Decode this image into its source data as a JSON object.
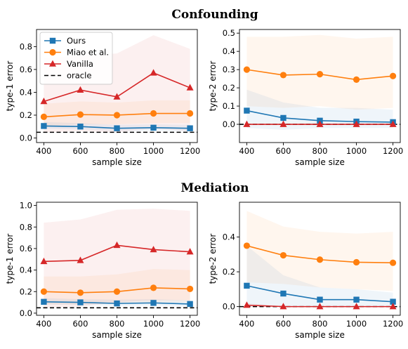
{
  "figure": {
    "section_titles": [
      "Confounding",
      "Mediation"
    ]
  },
  "legend": {
    "entries": [
      {
        "label": "Ours",
        "color": "#1f77b4",
        "marker": "square",
        "dash": false
      },
      {
        "label": "Miao et al.",
        "color": "#ff7f0e",
        "marker": "circle",
        "dash": false
      },
      {
        "label": "Vanilla",
        "color": "#d62728",
        "marker": "triangle",
        "dash": false
      },
      {
        "label": "oracle",
        "color": "#000000",
        "marker": "none",
        "dash": true
      }
    ]
  },
  "chart_data": [
    {
      "type": "line",
      "section": "Confounding",
      "xlabel": "sample size",
      "ylabel": "type-1 error",
      "x": [
        400,
        600,
        800,
        1000,
        1200
      ],
      "xlim": [
        360,
        1240
      ],
      "ylim": [
        -0.04,
        0.95
      ],
      "yticks": [
        0.0,
        0.2,
        0.4,
        0.6,
        0.8
      ],
      "ytick_labels": [
        "0.0",
        "0.2",
        "0.4",
        "0.6",
        "0.8"
      ],
      "oracle": 0.05,
      "legend": true,
      "series": [
        {
          "name": "Ours",
          "values": [
            0.105,
            0.1,
            0.085,
            0.09,
            0.085
          ],
          "band_low": [
            0.08,
            0.075,
            0.06,
            0.065,
            0.06
          ],
          "band_high": [
            0.14,
            0.13,
            0.115,
            0.12,
            0.115
          ]
        },
        {
          "name": "Miao et al.",
          "values": [
            0.185,
            0.205,
            0.2,
            0.215,
            0.215
          ],
          "band_low": [
            0.1,
            0.12,
            0.12,
            0.13,
            0.13
          ],
          "band_high": [
            0.3,
            0.32,
            0.31,
            0.33,
            0.33
          ]
        },
        {
          "name": "Vanilla",
          "values": [
            0.32,
            0.42,
            0.36,
            0.57,
            0.44
          ],
          "band_low": [
            0.05,
            0.06,
            0.05,
            0.08,
            0.06
          ],
          "band_high": [
            0.7,
            0.72,
            0.74,
            0.9,
            0.78
          ]
        }
      ]
    },
    {
      "type": "line",
      "section": "Confounding",
      "xlabel": "sample size",
      "ylabel": "type-2 error",
      "x": [
        400,
        600,
        800,
        1000,
        1200
      ],
      "xlim": [
        360,
        1240
      ],
      "ylim": [
        -0.1,
        0.52
      ],
      "yticks": [
        0.0,
        0.1,
        0.2,
        0.3,
        0.4,
        0.5
      ],
      "ytick_labels": [
        "0.0",
        "0.1",
        "0.2",
        "0.3",
        "0.4",
        "0.5"
      ],
      "oracle": 0.0,
      "legend": false,
      "series": [
        {
          "name": "Ours",
          "values": [
            0.075,
            0.035,
            0.02,
            0.015,
            0.012
          ],
          "band_low": [
            -0.02,
            -0.03,
            -0.02,
            -0.02,
            -0.02
          ],
          "band_high": [
            0.19,
            0.12,
            0.09,
            0.09,
            0.08
          ]
        },
        {
          "name": "Miao et al.",
          "values": [
            0.3,
            0.27,
            0.275,
            0.245,
            0.265
          ],
          "band_low": [
            0.1,
            0.09,
            0.1,
            0.08,
            0.09
          ],
          "band_high": [
            0.48,
            0.48,
            0.49,
            0.47,
            0.48
          ]
        },
        {
          "name": "Vanilla",
          "values": [
            0.0,
            0.0,
            0.0,
            0.0,
            0.0
          ],
          "band_low": [
            0.0,
            0.0,
            0.0,
            0.0,
            0.0
          ],
          "band_high": [
            0.003,
            0.003,
            0.003,
            0.003,
            0.003
          ]
        }
      ]
    },
    {
      "type": "line",
      "section": "Mediation",
      "xlabel": "sample size",
      "ylabel": "type-1 error",
      "x": [
        400,
        600,
        800,
        1000,
        1200
      ],
      "xlim": [
        360,
        1240
      ],
      "ylim": [
        -0.02,
        1.03
      ],
      "yticks": [
        0.0,
        0.2,
        0.4,
        0.6,
        0.8,
        1.0
      ],
      "ytick_labels": [
        "0.0",
        "0.2",
        "0.4",
        "0.6",
        "0.8",
        "1.0"
      ],
      "oracle": 0.05,
      "legend": false,
      "series": [
        {
          "name": "Ours",
          "values": [
            0.105,
            0.1,
            0.09,
            0.095,
            0.085
          ],
          "band_low": [
            0.08,
            0.075,
            0.065,
            0.07,
            0.06
          ],
          "band_high": [
            0.14,
            0.13,
            0.125,
            0.13,
            0.12
          ]
        },
        {
          "name": "Miao et al.",
          "values": [
            0.2,
            0.19,
            0.2,
            0.235,
            0.225
          ],
          "band_low": [
            0.08,
            0.08,
            0.09,
            0.1,
            0.1
          ],
          "band_high": [
            0.34,
            0.34,
            0.36,
            0.41,
            0.4
          ]
        },
        {
          "name": "Vanilla",
          "values": [
            0.48,
            0.49,
            0.63,
            0.59,
            0.57
          ],
          "band_low": [
            0.05,
            0.06,
            0.1,
            0.12,
            0.12
          ],
          "band_high": [
            0.84,
            0.87,
            0.96,
            0.97,
            0.95
          ]
        }
      ]
    },
    {
      "type": "line",
      "section": "Mediation",
      "xlabel": "sample size",
      "ylabel": "type-2 error",
      "x": [
        400,
        600,
        800,
        1000,
        1200
      ],
      "xlim": [
        360,
        1240
      ],
      "ylim": [
        -0.05,
        0.6
      ],
      "yticks": [
        0.0,
        0.2,
        0.4
      ],
      "ytick_labels": [
        "0.0",
        "0.2",
        "0.4"
      ],
      "oracle": 0.0,
      "legend": false,
      "series": [
        {
          "name": "Ours",
          "values": [
            0.12,
            0.075,
            0.04,
            0.04,
            0.028
          ],
          "band_low": [
            0.0,
            0.0,
            0.0,
            0.0,
            0.0
          ],
          "band_high": [
            0.35,
            0.18,
            0.11,
            0.1,
            0.08
          ]
        },
        {
          "name": "Miao et al.",
          "values": [
            0.35,
            0.295,
            0.27,
            0.255,
            0.252
          ],
          "band_low": [
            0.14,
            0.13,
            0.11,
            0.1,
            0.09
          ],
          "band_high": [
            0.55,
            0.46,
            0.43,
            0.42,
            0.43
          ]
        },
        {
          "name": "Vanilla",
          "values": [
            0.008,
            0.0,
            0.0,
            0.0,
            0.0
          ],
          "band_low": [
            0.0,
            0.0,
            0.0,
            0.0,
            0.0
          ],
          "band_high": [
            0.02,
            0.003,
            0.003,
            0.003,
            0.003
          ]
        }
      ]
    }
  ]
}
